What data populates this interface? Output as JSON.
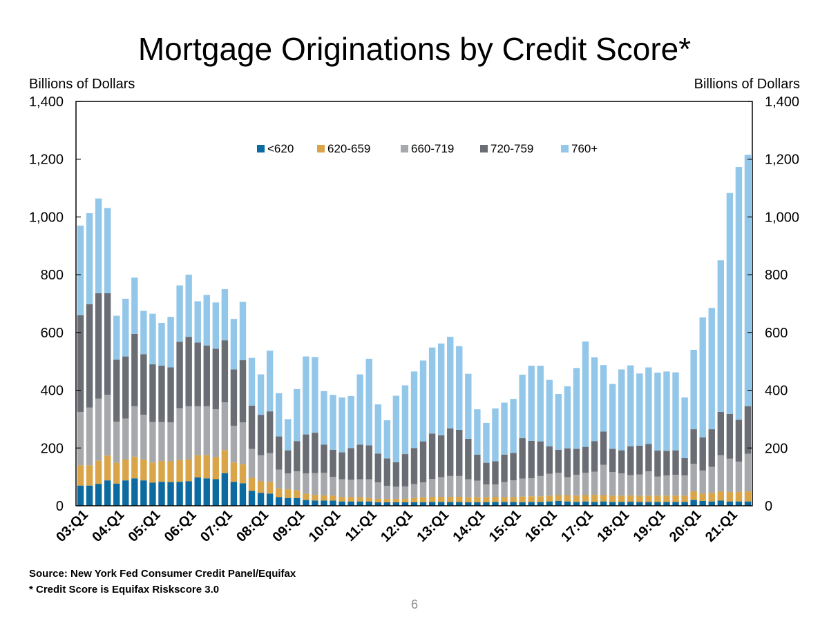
{
  "page": {
    "footnote_source": "Source: New York Fed Consumer Credit Panel/Equifax",
    "footnote_note": "* Credit Score is Equifax Riskscore 3.0",
    "page_number": "6"
  },
  "chart_data": {
    "type": "bar",
    "stacked": true,
    "title": "Mortgage Originations by Credit Score*",
    "ylabel_left": "Billions of Dollars",
    "ylabel_right": "Billions of Dollars",
    "ylim": [
      0,
      1400
    ],
    "yticks": [
      0,
      200,
      400,
      600,
      800,
      1000,
      1200,
      1400
    ],
    "ytick_labels": [
      "0",
      "200",
      "400",
      "600",
      "800",
      "1,000",
      "1,200",
      "1,400"
    ],
    "grid": false,
    "legend_position": "top-center",
    "x_tick_labels": [
      "03:Q1",
      "04:Q1",
      "05:Q1",
      "06:Q1",
      "07:Q1",
      "08:Q1",
      "09:Q1",
      "10:Q1",
      "11:Q1",
      "12:Q1",
      "13:Q1",
      "14:Q1",
      "15:Q1",
      "16:Q1",
      "17:Q1",
      "18:Q1",
      "19:Q1",
      "20:Q1",
      "21:Q1"
    ],
    "x_tick_every": 4,
    "x_note": "Quarterly bars starting 03:Q1 through 21:Q2",
    "series": [
      {
        "name": "<620",
        "color": "#0b6aa0",
        "values": [
          70,
          70,
          76,
          88,
          77,
          88,
          95,
          88,
          80,
          83,
          82,
          83,
          85,
          98,
          95,
          92,
          113,
          83,
          78,
          52,
          45,
          42,
          30,
          27,
          27,
          20,
          18,
          18,
          18,
          15,
          15,
          15,
          15,
          12,
          12,
          12,
          12,
          12,
          12,
          13,
          13,
          13,
          13,
          12,
          12,
          12,
          13,
          13,
          13,
          12,
          13,
          13,
          15,
          17,
          15,
          13,
          15,
          13,
          15,
          13,
          13,
          14,
          13,
          13,
          13,
          13,
          13,
          13,
          20,
          17,
          15,
          18,
          15,
          15,
          15
        ]
      },
      {
        "name": "620-659",
        "color": "#d9a548",
        "values": [
          70,
          70,
          80,
          86,
          72,
          72,
          75,
          72,
          70,
          72,
          72,
          75,
          75,
          77,
          80,
          77,
          80,
          67,
          66,
          45,
          40,
          40,
          30,
          30,
          27,
          22,
          20,
          18,
          17,
          15,
          15,
          15,
          12,
          12,
          12,
          12,
          12,
          15,
          17,
          18,
          18,
          18,
          18,
          17,
          17,
          17,
          17,
          17,
          17,
          20,
          20,
          20,
          20,
          20,
          22,
          22,
          22,
          25,
          22,
          22,
          22,
          22,
          22,
          22,
          22,
          22,
          22,
          22,
          30,
          25,
          30,
          32,
          33,
          33,
          35
        ]
      },
      {
        "name": "660-719",
        "color": "#a6a8ab",
        "values": [
          185,
          200,
          215,
          210,
          142,
          142,
          175,
          155,
          140,
          135,
          135,
          180,
          185,
          170,
          170,
          165,
          165,
          127,
          145,
          100,
          90,
          100,
          65,
          55,
          65,
          70,
          75,
          78,
          65,
          62,
          60,
          62,
          65,
          57,
          45,
          42,
          43,
          48,
          52,
          62,
          68,
          72,
          72,
          63,
          58,
          45,
          44,
          52,
          58,
          62,
          62,
          70,
          76,
          77,
          62,
          72,
          77,
          80,
          105,
          82,
          77,
          70,
          73,
          84,
          66,
          70,
          72,
          70,
          95,
          80,
          90,
          125,
          115,
          105,
          130
        ]
      },
      {
        "name": "720-759",
        "color": "#6a6e74",
        "values": [
          335,
          358,
          365,
          352,
          215,
          215,
          250,
          210,
          200,
          195,
          190,
          230,
          240,
          220,
          210,
          210,
          215,
          195,
          215,
          150,
          140,
          145,
          115,
          80,
          105,
          135,
          140,
          98,
          94,
          93,
          110,
          120,
          117,
          100,
          95,
          85,
          112,
          125,
          142,
          157,
          145,
          165,
          160,
          140,
          90,
          75,
          80,
          95,
          95,
          140,
          130,
          120,
          95,
          80,
          100,
          90,
          90,
          106,
          115,
          80,
          80,
          100,
          100,
          95,
          90,
          85,
          85,
          60,
          120,
          115,
          130,
          150,
          155,
          145,
          165
        ]
      },
      {
        "name": "760+",
        "color": "#93c7e9",
        "values": [
          310,
          315,
          328,
          295,
          152,
          200,
          195,
          150,
          175,
          148,
          175,
          195,
          215,
          143,
          175,
          160,
          177,
          175,
          202,
          165,
          140,
          210,
          150,
          108,
          180,
          270,
          262,
          185,
          190,
          190,
          180,
          243,
          300,
          170,
          132,
          230,
          238,
          265,
          280,
          298,
          318,
          317,
          290,
          225,
          157,
          138,
          183,
          180,
          187,
          220,
          260,
          262,
          230,
          193,
          215,
          280,
          365,
          290,
          230,
          225,
          280,
          280,
          250,
          265,
          270,
          275,
          270,
          210,
          275,
          415,
          420,
          525,
          765,
          875,
          870
        ]
      }
    ]
  }
}
